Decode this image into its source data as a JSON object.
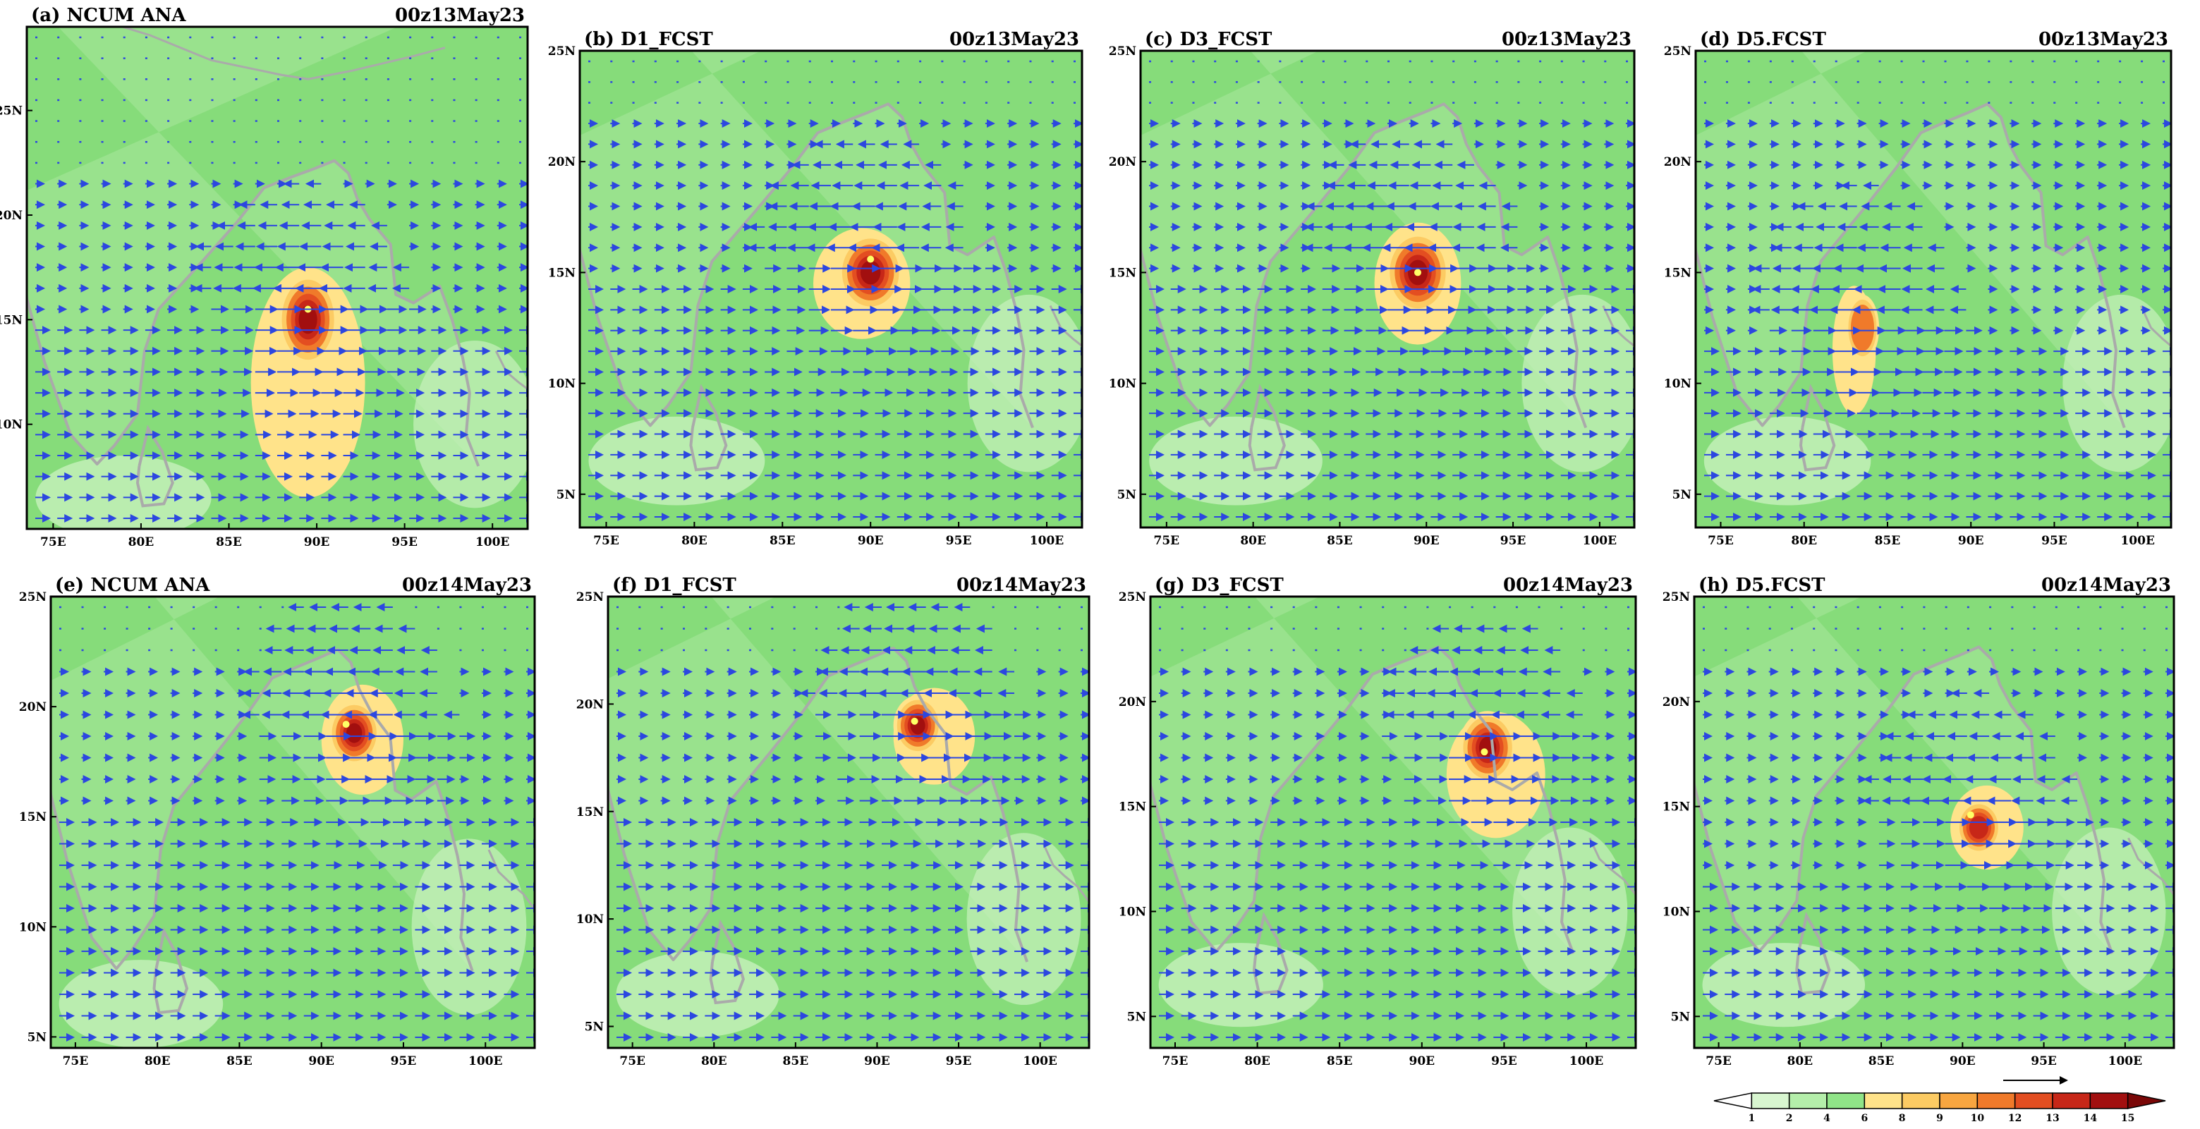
{
  "chart_data": [
    {
      "type": "heatmap",
      "panel_label": "(a)",
      "model_label": "NCUM ANA",
      "valid_time": "00z13May23",
      "xlabels": [
        "75E",
        "80E",
        "85E",
        "90E",
        "95E",
        "100E"
      ],
      "ylabels": [
        "10N",
        "15N",
        "20N",
        "25N"
      ],
      "x_range": [
        73.5,
        102
      ],
      "y_range": [
        5,
        29
      ],
      "features": {
        "cyclone_center": {
          "lon": 89.5,
          "lat": 15.0
        },
        "eye": {
          "lon": 89.5,
          "lat": 15.5
        },
        "peak_value": 14.5,
        "core_size": [
          3.5,
          4.5
        ],
        "warm_region": {
          "lon": 89.5,
          "lat": 12.0,
          "size": [
            6.5,
            11.0
          ],
          "value": 6.5
        }
      }
    },
    {
      "type": "heatmap",
      "panel_label": "(b)",
      "model_label": "D1_FCST",
      "valid_time": "00z13May23",
      "xlabels": [
        "75E",
        "80E",
        "85E",
        "90E",
        "95E",
        "100E"
      ],
      "ylabels": [
        "5N",
        "10N",
        "15N",
        "20N",
        "25N"
      ],
      "x_range": [
        73.5,
        102
      ],
      "y_range": [
        3.5,
        25
      ],
      "features": {
        "cyclone_center": {
          "lon": 90.0,
          "lat": 15.0
        },
        "eye": {
          "lon": 90.0,
          "lat": 15.6
        },
        "peak_value": 14.2,
        "core_size": [
          3.8,
          3.6
        ],
        "warm_region": {
          "lon": 89.5,
          "lat": 14.5,
          "size": [
            5.5,
            5.0
          ],
          "value": 6.0
        }
      }
    },
    {
      "type": "heatmap",
      "panel_label": "(c)",
      "model_label": "D3_FCST",
      "valid_time": "00z13May23",
      "xlabels": [
        "75E",
        "80E",
        "85E",
        "90E",
        "95E",
        "100E"
      ],
      "ylabels": [
        "5N",
        "10N",
        "15N",
        "20N",
        "25N"
      ],
      "x_range": [
        73.5,
        102
      ],
      "y_range": [
        3.5,
        25
      ],
      "features": {
        "cyclone_center": {
          "lon": 89.5,
          "lat": 15.0
        },
        "eye": {
          "lon": 89.5,
          "lat": 15.0
        },
        "peak_value": 14.3,
        "core_size": [
          3.8,
          3.8
        ],
        "warm_region": {
          "lon": 89.5,
          "lat": 14.5,
          "size": [
            5.0,
            5.5
          ],
          "value": 6.0
        }
      }
    },
    {
      "type": "heatmap",
      "panel_label": "(d)",
      "model_label": "D5.FCST",
      "valid_time": "00z13May23",
      "xlabels": [
        "75E",
        "80E",
        "85E",
        "90E",
        "95E",
        "100E"
      ],
      "ylabels": [
        "5N",
        "10N",
        "15N",
        "20N",
        "25N"
      ],
      "x_range": [
        73.5,
        102
      ],
      "y_range": [
        3.5,
        25
      ],
      "features": {
        "cyclone_center": {
          "lon": 83.5,
          "lat": 12.5
        },
        "eye": null,
        "peak_value": 10.0,
        "core_size": [
          2.0,
          3.0
        ],
        "warm_region": {
          "lon": 83.0,
          "lat": 11.5,
          "size": [
            2.6,
            5.8
          ],
          "value": 6.0
        }
      }
    },
    {
      "type": "heatmap",
      "panel_label": "(e)",
      "model_label": "NCUM ANA",
      "valid_time": "00z14May23",
      "xlabels": [
        "75E",
        "80E",
        "85E",
        "90E",
        "95E",
        "100E"
      ],
      "ylabels": [
        "5N",
        "10N",
        "15N",
        "20N",
        "25N"
      ],
      "x_range": [
        73.5,
        103
      ],
      "y_range": [
        4.5,
        25
      ],
      "features": {
        "cyclone_center": {
          "lon": 92.0,
          "lat": 18.8
        },
        "eye": {
          "lon": 91.5,
          "lat": 19.2
        },
        "peak_value": 14.8,
        "core_size": [
          3.2,
          3.0
        ],
        "warm_region": {
          "lon": 92.5,
          "lat": 18.5,
          "size": [
            5.0,
            5.0
          ],
          "value": 6.0
        }
      }
    },
    {
      "type": "heatmap",
      "panel_label": "(f)",
      "model_label": "D1_FCST",
      "valid_time": "00z14May23",
      "xlabels": [
        "75E",
        "80E",
        "85E",
        "90E",
        "95E",
        "100E"
      ],
      "ylabels": [
        "5N",
        "10N",
        "15N",
        "20N",
        "25N"
      ],
      "x_range": [
        73.5,
        103
      ],
      "y_range": [
        4,
        25
      ],
      "features": {
        "cyclone_center": {
          "lon": 92.5,
          "lat": 19.0
        },
        "eye": {
          "lon": 92.3,
          "lat": 19.2
        },
        "peak_value": 14.5,
        "core_size": [
          3.0,
          2.8
        ],
        "warm_region": {
          "lon": 93.5,
          "lat": 18.5,
          "size": [
            5.0,
            4.5
          ],
          "value": 6.0
        }
      }
    },
    {
      "type": "heatmap",
      "panel_label": "(g)",
      "model_label": "D3_FCST",
      "valid_time": "00z14May23",
      "xlabels": [
        "75E",
        "80E",
        "85E",
        "90E",
        "95E",
        "100E"
      ],
      "ylabels": [
        "5N",
        "10N",
        "15N",
        "20N",
        "25N"
      ],
      "x_range": [
        73.5,
        103
      ],
      "y_range": [
        3.5,
        25
      ],
      "features": {
        "cyclone_center": {
          "lon": 94.0,
          "lat": 17.8
        },
        "eye": {
          "lon": 93.8,
          "lat": 17.6
        },
        "peak_value": 14.4,
        "core_size": [
          3.5,
          3.5
        ],
        "warm_region": {
          "lon": 94.5,
          "lat": 16.5,
          "size": [
            6.0,
            6.0
          ],
          "value": 6.0
        }
      }
    },
    {
      "type": "heatmap",
      "panel_label": "(h)",
      "model_label": "D5.FCST",
      "valid_time": "00z14May23",
      "xlabels": [
        "75E",
        "80E",
        "85E",
        "90E",
        "95E",
        "100E"
      ],
      "ylabels": [
        "5N",
        "10N",
        "15N",
        "20N",
        "25N"
      ],
      "x_range": [
        73.5,
        103
      ],
      "y_range": [
        3.5,
        25
      ],
      "features": {
        "cyclone_center": {
          "lon": 91.0,
          "lat": 14.0
        },
        "eye": {
          "lon": 90.5,
          "lat": 14.6
        },
        "peak_value": 13.5,
        "core_size": [
          2.8,
          2.6
        ],
        "warm_region": {
          "lon": 91.5,
          "lat": 14.0,
          "size": [
            4.5,
            4.0
          ],
          "value": 6.0
        }
      }
    }
  ],
  "colorbar": {
    "tick_labels": [
      "1",
      "2",
      "4",
      "6",
      "8",
      "9",
      "10",
      "12",
      "13",
      "14",
      "15"
    ],
    "colors": [
      "#ffffff",
      "#d8f6d0",
      "#b4eeaa",
      "#90e488",
      "#ffe38a",
      "#fccb63",
      "#f8a640",
      "#f07a2a",
      "#e34e21",
      "#c72718",
      "#a20f0f",
      "#7a0707"
    ]
  },
  "colors": {
    "land_green": "#a9e89c",
    "sea_green": "#86dc7a",
    "coast_gray": "#aaaaaa",
    "vector_blue": "#2c47e0",
    "eye_yellow": "#ffff66"
  }
}
